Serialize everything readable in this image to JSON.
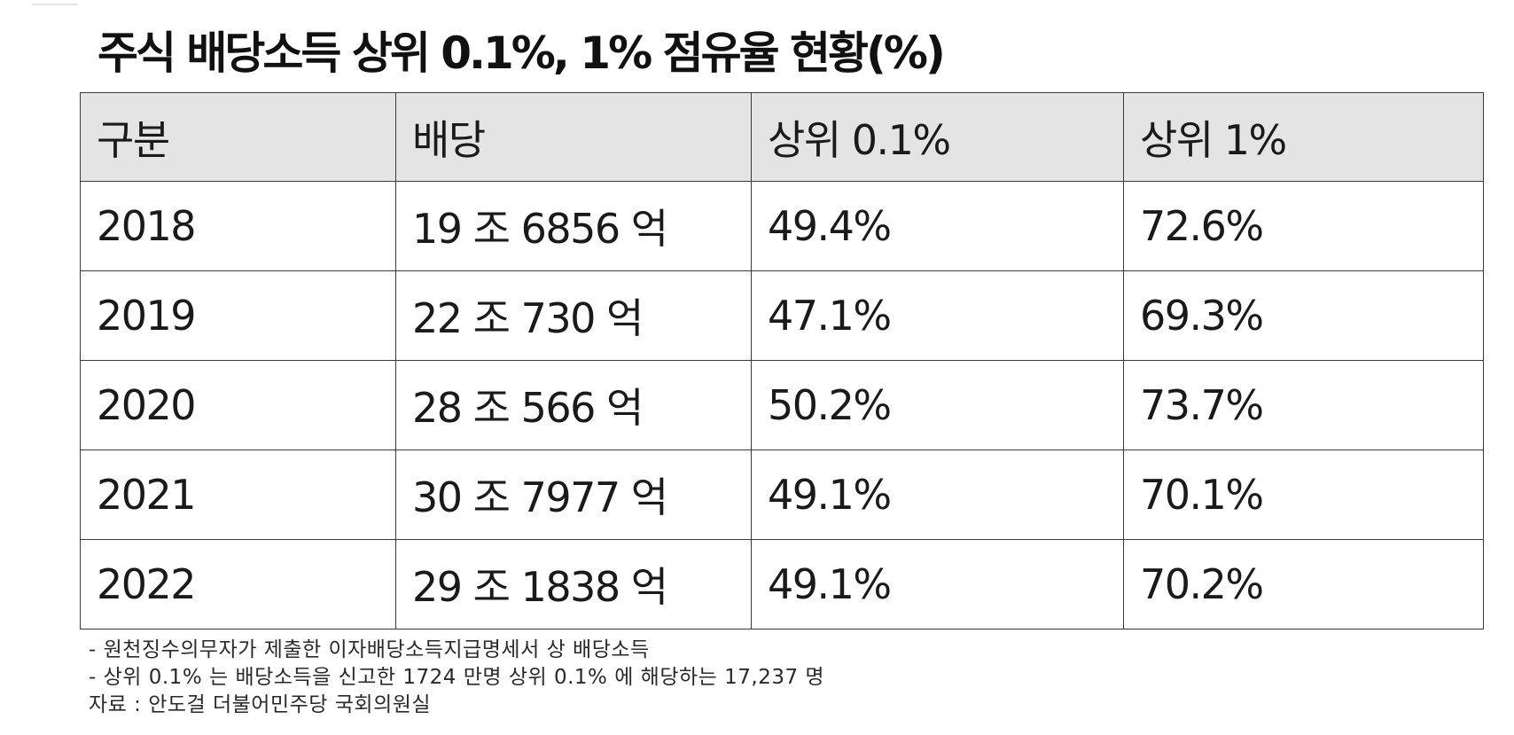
{
  "title": "주식 배당소득 상위 0.1%, 1% 점유율 현황(%)",
  "table": {
    "headers": [
      "구분",
      "배당",
      "상위 0.1%",
      "상위 1%"
    ],
    "rows": [
      [
        "2018",
        "19 조 6856 억",
        "49.4%",
        "72.6%"
      ],
      [
        "2019",
        "22 조 730 억",
        "47.1%",
        "69.3%"
      ],
      [
        "2020",
        "28 조 566 억",
        "50.2%",
        "73.7%"
      ],
      [
        "2021",
        "30 조 7977 억",
        "49.1%",
        "70.1%"
      ],
      [
        "2022",
        "29 조 1838 억",
        "49.1%",
        "70.2%"
      ]
    ]
  },
  "notes": [
    "- 원천징수의무자가 제출한 이자배당소득지급명세서 상 배당소득",
    "- 상위 0.1% 는 배당소득을 신고한 1724 만명 상위 0.1% 에 해당하는 17,237 명",
    "자료 : 안도걸 더불어민주당 국회의원실"
  ],
  "colors": {
    "header_background": "#e4e4e4",
    "border": "#3a3a3a",
    "text": "#1a1a1a"
  }
}
